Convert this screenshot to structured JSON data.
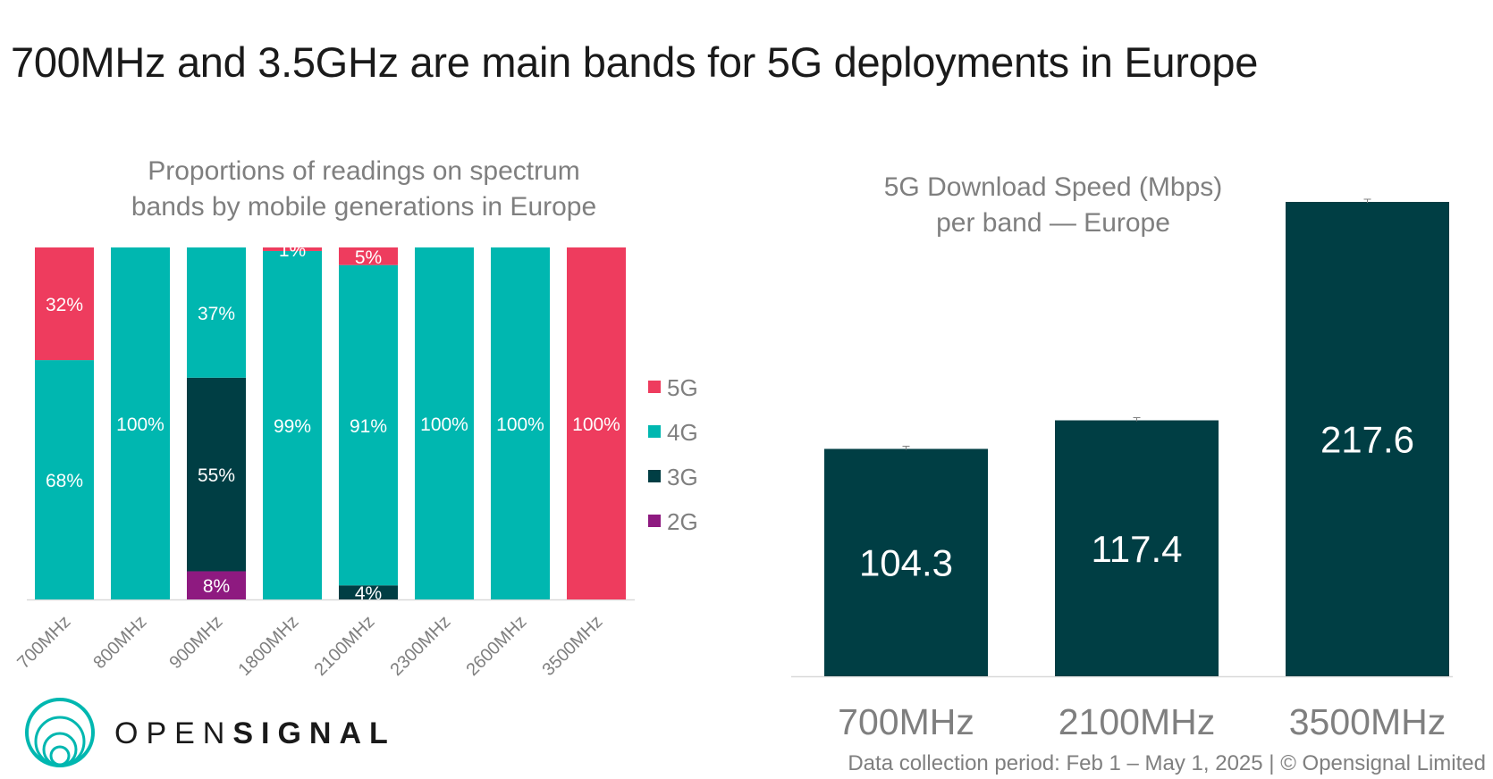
{
  "title": "700MHz and 3.5GHz are main bands for 5G deployments in Europe",
  "footer": "Data collection period: Feb 1 – May 1, 2025 | © Opensignal Limited",
  "logo": {
    "text_light": "OPEN",
    "text_bold": "SIGNAL",
    "icon": "opensignal-rings-icon"
  },
  "colors": {
    "5G": "#ee3c5e",
    "4G": "#00b7b0",
    "3G": "#003e44",
    "2G": "#8e1a80",
    "speed_bar": "#003e44"
  },
  "chart_data": [
    {
      "type": "bar",
      "stacked": true,
      "title_lines": [
        "Proportions of readings on spectrum",
        "bands by mobile generations in Europe"
      ],
      "categories": [
        "700MHz",
        "800MHz",
        "900MHz",
        "1800MHz",
        "2100MHz",
        "2300MHz",
        "2600MHz",
        "3500MHz"
      ],
      "series": [
        {
          "name": "2G",
          "values": [
            0,
            0,
            8,
            0,
            0,
            0,
            0,
            0
          ],
          "labels": [
            "",
            "",
            "8%",
            "",
            "",
            "",
            "",
            ""
          ]
        },
        {
          "name": "3G",
          "values": [
            0,
            0,
            55,
            0,
            4,
            0,
            0,
            0
          ],
          "labels": [
            "",
            "",
            "55%",
            "",
            "4%",
            "",
            "",
            ""
          ]
        },
        {
          "name": "4G",
          "values": [
            68,
            100,
            37,
            99,
            91,
            100,
            100,
            0
          ],
          "labels": [
            "68%",
            "100%",
            "37%",
            "99%",
            "91%",
            "100%",
            "100%",
            ""
          ]
        },
        {
          "name": "5G",
          "values": [
            32,
            0,
            0,
            1,
            5,
            0,
            0,
            100
          ],
          "labels": [
            "32%",
            "",
            "",
            "1%",
            "5%",
            "",
            "",
            "100%"
          ]
        }
      ],
      "legend": {
        "position": "right",
        "entries": [
          "5G",
          "4G",
          "3G",
          "2G"
        ]
      },
      "ylim": [
        0,
        100
      ]
    },
    {
      "type": "bar",
      "title_lines": [
        "5G Download Speed (Mbps)",
        "per band — Europe"
      ],
      "categories": [
        "700MHz",
        "2100MHz",
        "3500MHz"
      ],
      "values": [
        104.3,
        117.4,
        217.6
      ],
      "value_labels": [
        "104.3",
        "117.4",
        "217.6"
      ],
      "error_bars": true,
      "ylim": [
        0,
        217.6
      ]
    }
  ]
}
